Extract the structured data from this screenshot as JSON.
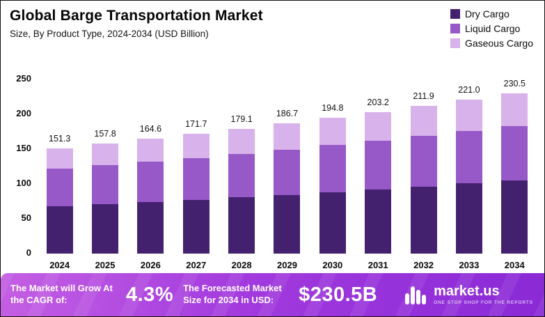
{
  "header": {
    "title": "Global Barge Transportation Market",
    "subtitle": "Size, By Product Type, 2024-2034 (USD Billion)"
  },
  "chart_data": {
    "type": "bar",
    "stacked": true,
    "title": "Global Barge Transportation Market",
    "subtitle": "Size, By Product Type, 2024-2034 (USD Billion)",
    "unit": "USD Billion",
    "categories": [
      "2024",
      "2025",
      "2026",
      "2027",
      "2028",
      "2029",
      "2030",
      "2031",
      "2032",
      "2033",
      "2034"
    ],
    "series": [
      {
        "name": "Dry Cargo",
        "color": "#44216f",
        "values": [
          68,
          71,
          74,
          77.5,
          81,
          84.5,
          88.5,
          92.5,
          96.5,
          101,
          105.5
        ]
      },
      {
        "name": "Liquid Cargo",
        "color": "#9759c8",
        "values": [
          54,
          56,
          58,
          60,
          62.5,
          65,
          67.5,
          70,
          72.5,
          75,
          77.5
        ]
      },
      {
        "name": "Gaseous Cargo",
        "color": "#d8b2ea",
        "values": [
          29.3,
          30.8,
          32.6,
          34.2,
          35.6,
          37.2,
          38.8,
          40.7,
          42.9,
          45.0,
          47.5
        ]
      }
    ],
    "totals": [
      151.3,
      157.8,
      164.6,
      171.7,
      179.1,
      186.7,
      194.8,
      203.2,
      211.9,
      221.0,
      230.5
    ],
    "total_labels": [
      "151.3",
      "157.8",
      "164.6",
      "171.7",
      "179.1",
      "186.7",
      "194.8",
      "203.2",
      "211.9",
      "221.0",
      "230.5"
    ],
    "ylim": [
      0,
      250
    ],
    "yticks": [
      0,
      50,
      100,
      150,
      200,
      250
    ],
    "grid": false,
    "legend_position": "top-right"
  },
  "banner": {
    "cagr_label": "The Market will Grow At the CAGR of:",
    "cagr_value": "4.3%",
    "forecast_label": "The Forecasted Market Size for 2034 in USD:",
    "forecast_value": "$230.5B",
    "brand": "market.us",
    "brand_tagline": "ONE STOP SHOP FOR THE REPORTS"
  }
}
